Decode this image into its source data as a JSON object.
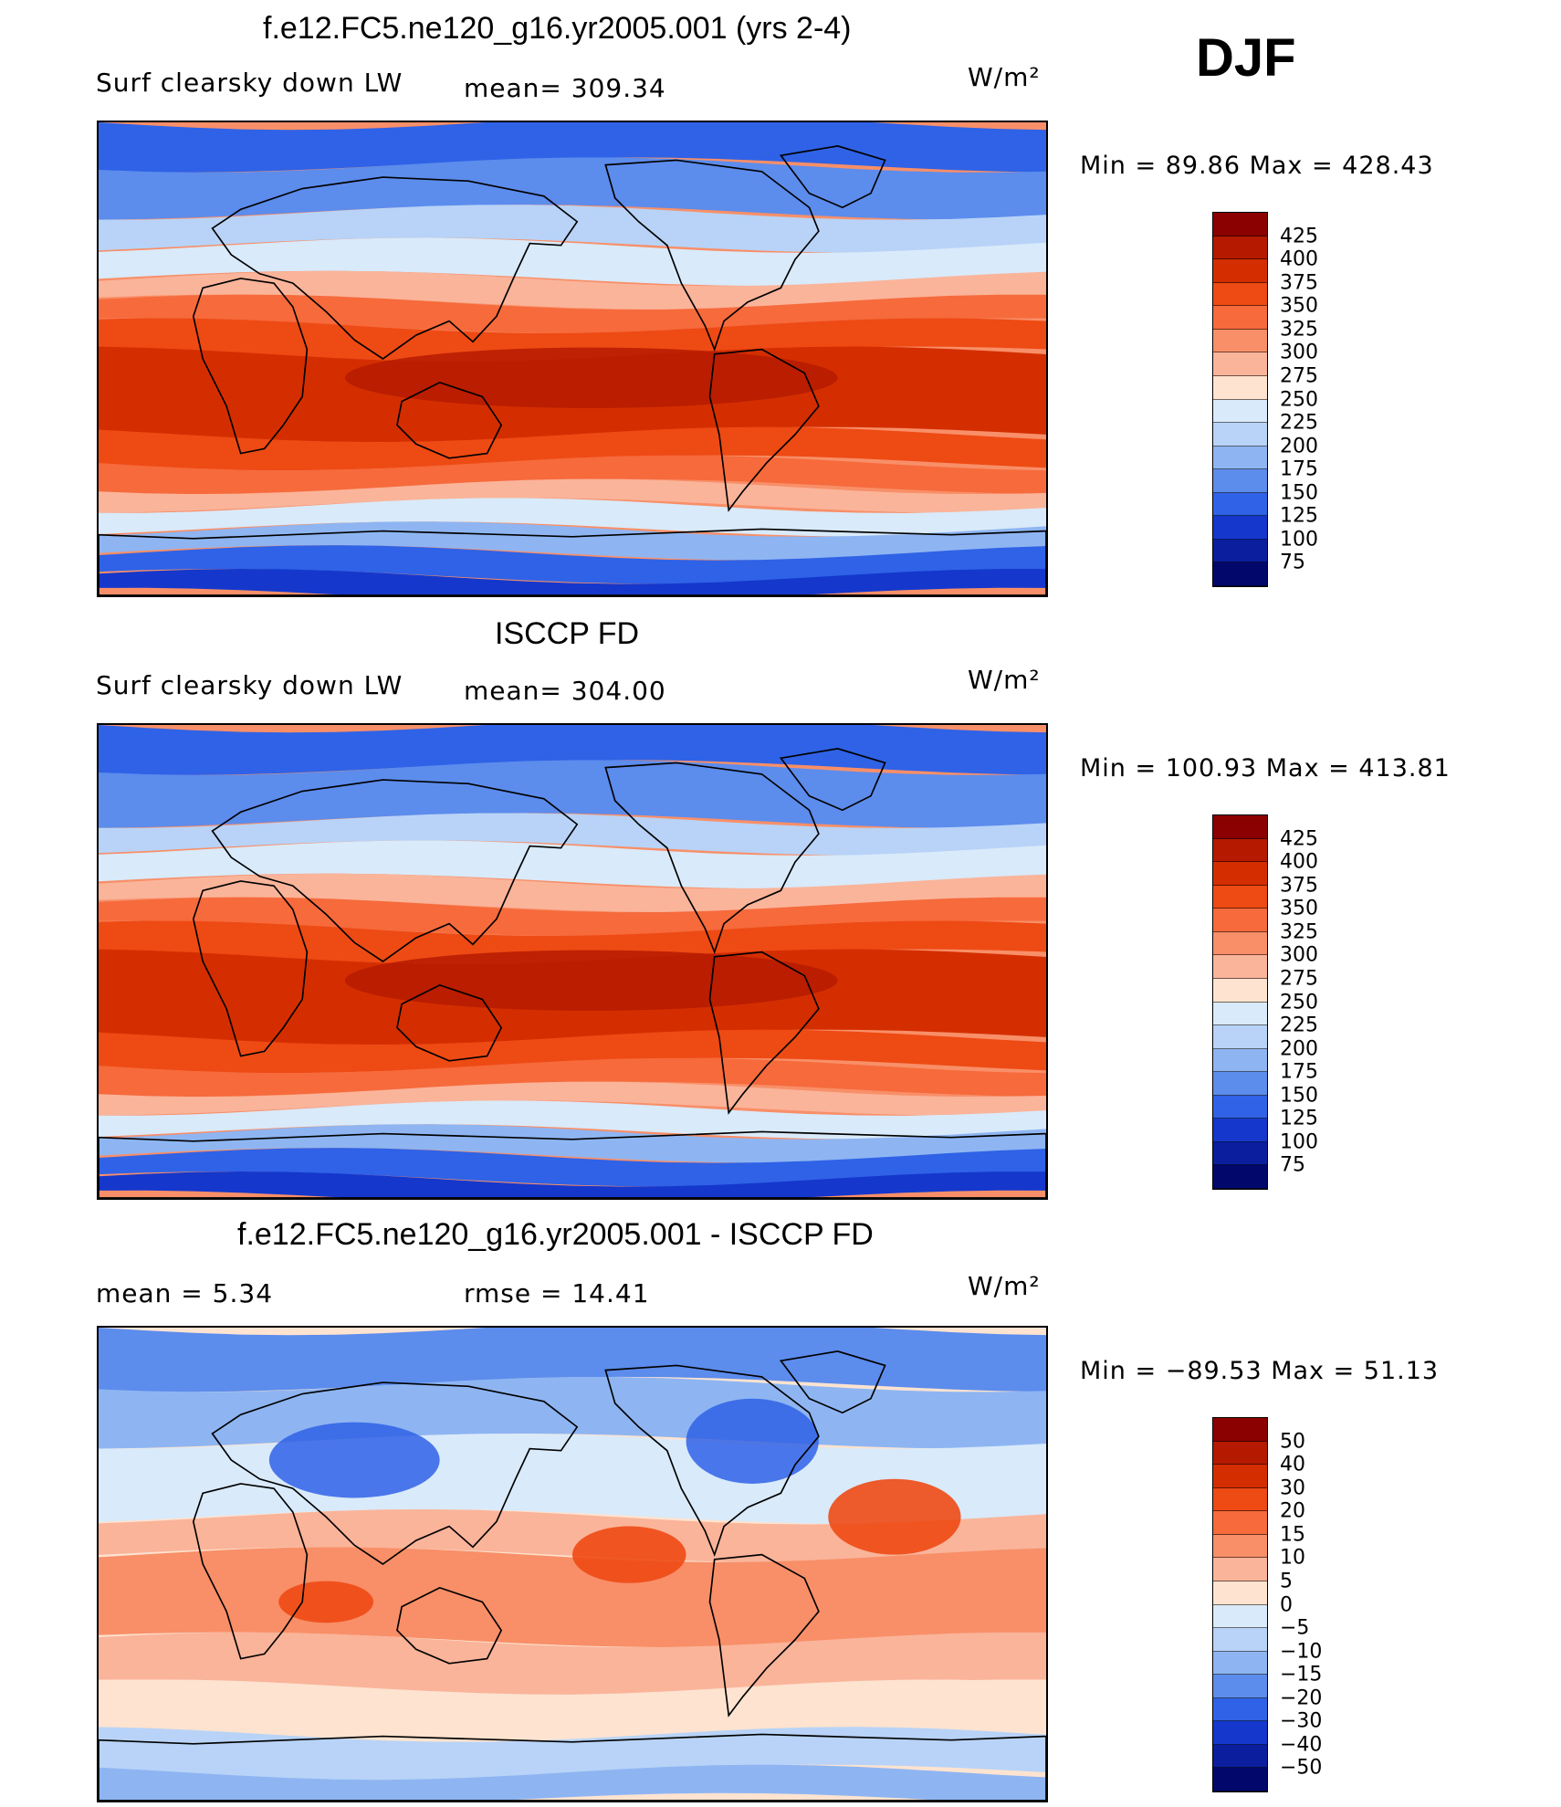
{
  "season": "DJF",
  "units": "W/m²",
  "chart_data": [
    {
      "type": "heatmap",
      "title": "f.e12.FC5.ne120_g16.yr2005.001 (yrs 2-4)",
      "variable": "Surf clearsky down LW",
      "mean_text": "mean=  309.34",
      "units": "W/m²",
      "range_text": "Min =   89.86 Max = 428.43",
      "stats": {
        "mean": 309.34,
        "min": 89.86,
        "max": 428.43
      },
      "colorbar": {
        "ticks": [
          "425",
          "400",
          "375",
          "350",
          "325",
          "300",
          "275",
          "250",
          "225",
          "200",
          "175",
          "150",
          "125",
          "100",
          "75"
        ],
        "colors": [
          "#8b0000",
          "#b51a00",
          "#d42e00",
          "#ee4a14",
          "#f66a3c",
          "#f88f68",
          "#fab49a",
          "#fde3d0",
          "#d9eafa",
          "#b8d3f7",
          "#8eb5f2",
          "#5c8cec",
          "#2f62e6",
          "#1537cc",
          "#0a1e9e",
          "#02076b"
        ]
      },
      "map": "global lat-lon contour field; high values in tropics, low values at poles"
    },
    {
      "type": "heatmap",
      "title": "ISCCP FD",
      "variable": "Surf clearsky down LW",
      "mean_text": "mean=  304.00",
      "units": "W/m²",
      "range_text": "Min = 100.93 Max = 413.81",
      "stats": {
        "mean": 304.0,
        "min": 100.93,
        "max": 413.81
      },
      "colorbar": {
        "ticks": [
          "425",
          "400",
          "375",
          "350",
          "325",
          "300",
          "275",
          "250",
          "225",
          "200",
          "175",
          "150",
          "125",
          "100",
          "75"
        ],
        "colors": [
          "#8b0000",
          "#b51a00",
          "#d42e00",
          "#ee4a14",
          "#f66a3c",
          "#f88f68",
          "#fab49a",
          "#fde3d0",
          "#d9eafa",
          "#b8d3f7",
          "#8eb5f2",
          "#5c8cec",
          "#2f62e6",
          "#1537cc",
          "#0a1e9e",
          "#02076b"
        ]
      },
      "map": "global lat-lon contour field; high values in tropics, low values at poles"
    },
    {
      "type": "heatmap",
      "title": "f.e12.FC5.ne120_g16.yr2005.001 - ISCCP FD",
      "mean_text": "mean =     5.34",
      "rmse_text": "rmse =    14.41",
      "units": "W/m²",
      "range_text": "Min = −89.53 Max =   51.13",
      "stats": {
        "mean": 5.34,
        "rmse": 14.41,
        "min": -89.53,
        "max": 51.13
      },
      "colorbar": {
        "ticks": [
          "50",
          "40",
          "30",
          "20",
          "15",
          "10",
          "5",
          "0",
          "−5",
          "−10",
          "−15",
          "−20",
          "−30",
          "−40",
          "−50"
        ],
        "colors": [
          "#8b0000",
          "#b51a00",
          "#d42e00",
          "#ee4a14",
          "#f66a3c",
          "#f88f68",
          "#fab49a",
          "#fde3d0",
          "#d9eafa",
          "#b8d3f7",
          "#8eb5f2",
          "#5c8cec",
          "#2f62e6",
          "#1537cc",
          "#0a1e9e",
          "#02076b"
        ]
      },
      "map": "difference field; mostly positive over oceans, negative over high-latitude continents"
    }
  ]
}
